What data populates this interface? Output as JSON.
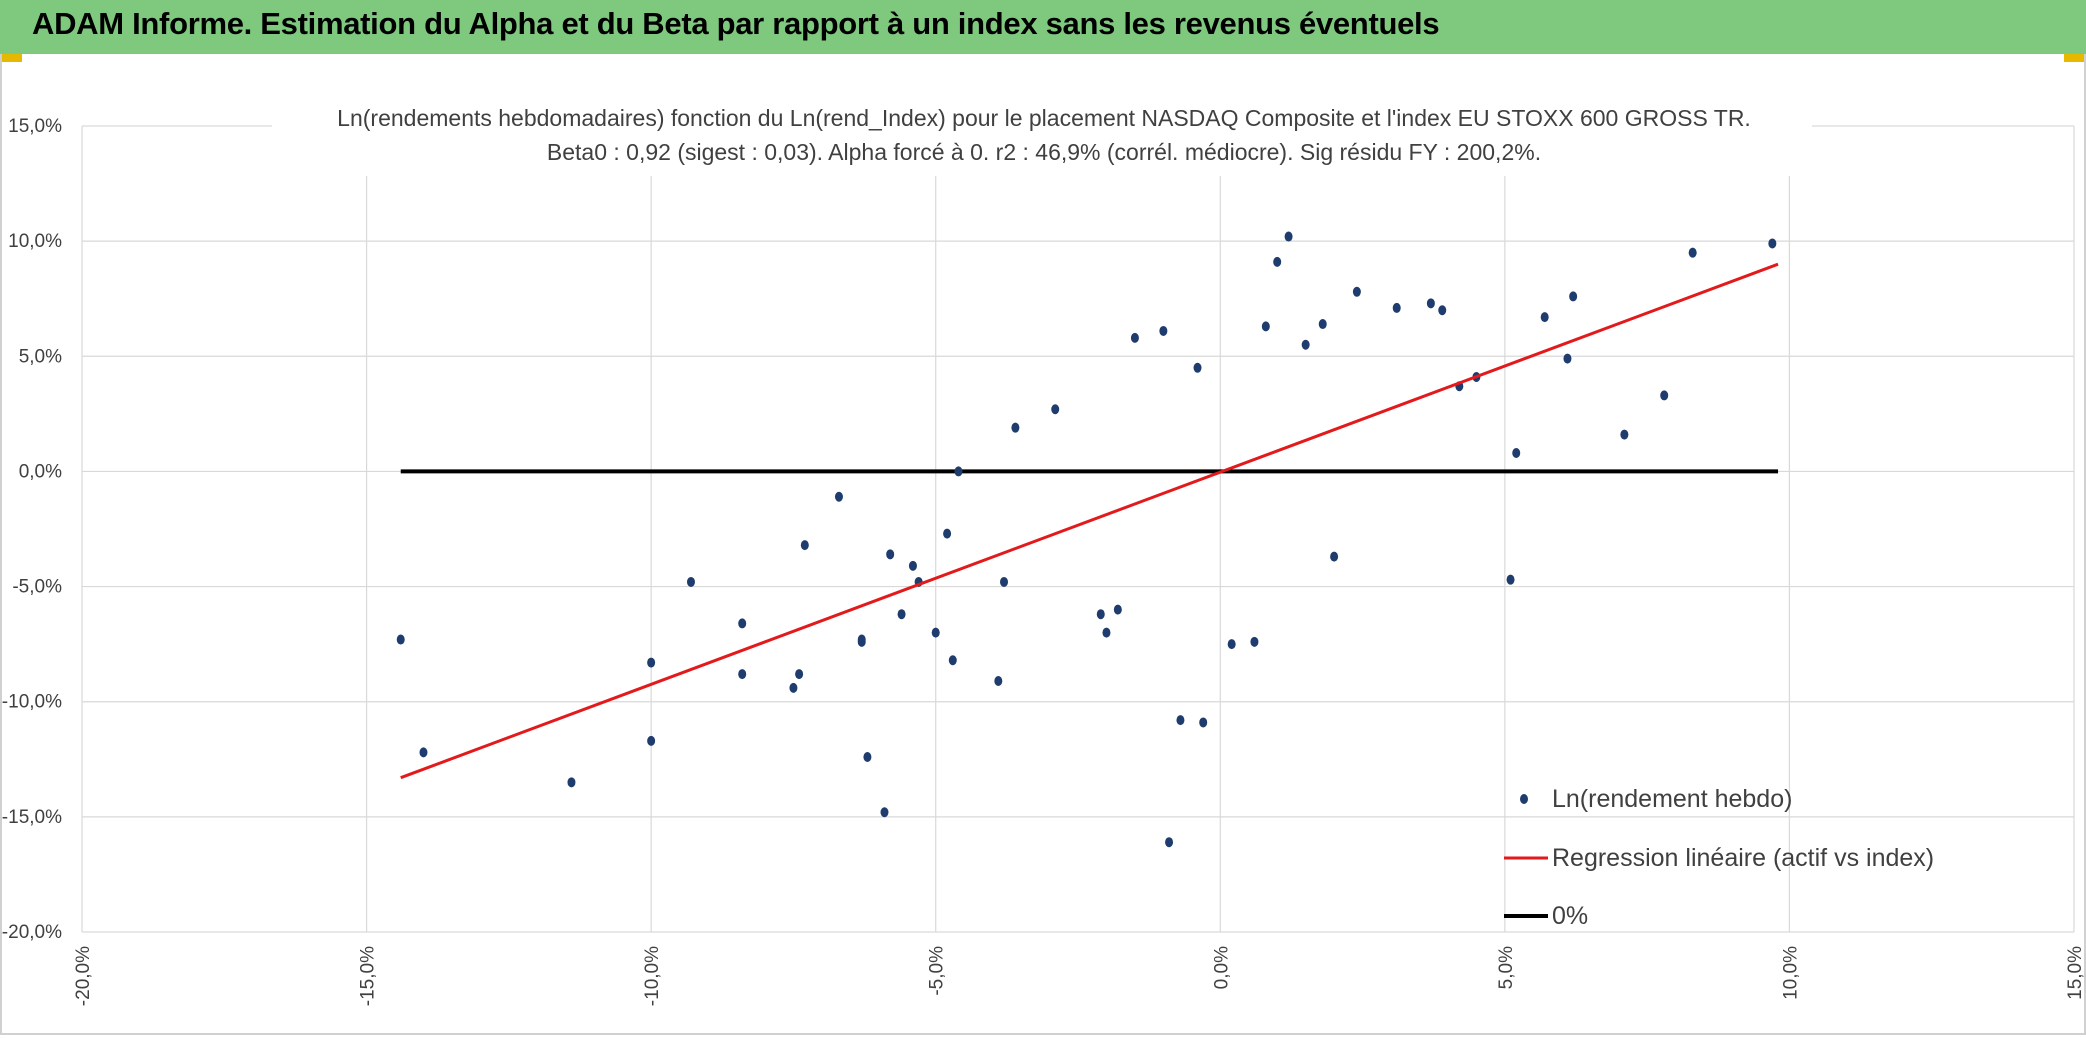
{
  "banner": {
    "title": "ADAM Informe. Estimation du Alpha et du Beta par rapport à un index sans les revenus éventuels",
    "background": "#7fc97f",
    "corner_color": "#e6b800"
  },
  "chart_data": {
    "type": "scatter",
    "title": "Ln(rendements hebdomadaires) fonction du Ln(rend_Index) pour le placement NASDAQ Composite et l'index EU STOXX 600 GROSS TR.",
    "subtitle": "Beta0 : 0,92 (sigest : 0,03). Alpha forcé à 0. r2 : 46,9% (corrél. médiocre). Sig résidu FY : 200,2%.",
    "xlabel": "",
    "ylabel": "",
    "xlim": [
      -20,
      15
    ],
    "ylim": [
      -20,
      15
    ],
    "x_ticks": [
      "-20,0%",
      "-15,0%",
      "-10,0%",
      "-5,0%",
      "0,0%",
      "5,0%",
      "10,0%",
      "15,0%"
    ],
    "y_ticks": [
      "15,0%",
      "10,0%",
      "5,0%",
      "0,0%",
      "-5,0%",
      "-10,0%",
      "-15,0%",
      "-20,0%"
    ],
    "grid": true,
    "legend_position": "bottom-right",
    "series": [
      {
        "name": "Ln(rendement hebdo)",
        "kind": "scatter",
        "color": "#1f3c6e",
        "x": [
          -14.4,
          -14.0,
          -11.4,
          -10.0,
          -10.0,
          -9.3,
          -8.4,
          -8.4,
          -7.5,
          -7.4,
          -7.3,
          -6.7,
          -6.3,
          -6.2,
          -6.3,
          -5.9,
          -5.8,
          -5.6,
          -5.4,
          -5.3,
          -5.0,
          -4.6,
          -4.7,
          -4.8,
          -3.9,
          -3.8,
          -3.6,
          -2.9,
          -1.5,
          -1.0,
          -0.9,
          -0.7,
          -2.1,
          -2.0,
          0.2,
          0.6,
          1.0,
          1.2,
          1.8,
          2.0,
          2.4,
          3.1,
          3.7,
          3.9,
          4.2,
          5.2,
          5.7,
          6.1,
          6.2,
          7.1,
          7.8,
          8.3,
          9.7,
          5.1,
          4.5,
          0.8,
          1.5,
          -0.4,
          -1.8,
          -0.3
        ],
        "y": [
          -7.3,
          -12.2,
          -13.5,
          -8.3,
          -11.7,
          -4.8,
          -6.6,
          -8.8,
          -9.4,
          -8.8,
          -3.2,
          -1.1,
          -7.3,
          -12.4,
          -7.4,
          -14.8,
          -3.6,
          -6.2,
          -4.1,
          -4.8,
          -7.0,
          0.0,
          -8.2,
          -2.7,
          -9.1,
          -4.8,
          1.9,
          2.7,
          5.8,
          6.1,
          -16.1,
          -10.8,
          -6.2,
          -7.0,
          -7.5,
          -7.4,
          9.1,
          10.2,
          6.4,
          -3.7,
          7.8,
          7.1,
          7.3,
          7.0,
          3.7,
          0.8,
          6.7,
          4.9,
          7.6,
          1.6,
          3.3,
          9.5,
          9.9,
          -4.7,
          4.1,
          6.3,
          5.5,
          4.5,
          -6.0,
          -10.9
        ]
      },
      {
        "name": "Regression linéaire (actif vs index)",
        "kind": "line",
        "color": "#e31a1c",
        "x": [
          -14.4,
          9.8
        ],
        "y": [
          -13.3,
          9.0
        ]
      },
      {
        "name": "0%",
        "kind": "line",
        "color": "#000000",
        "x": [
          -14.4,
          9.8
        ],
        "y": [
          0.0,
          0.0
        ]
      }
    ]
  }
}
